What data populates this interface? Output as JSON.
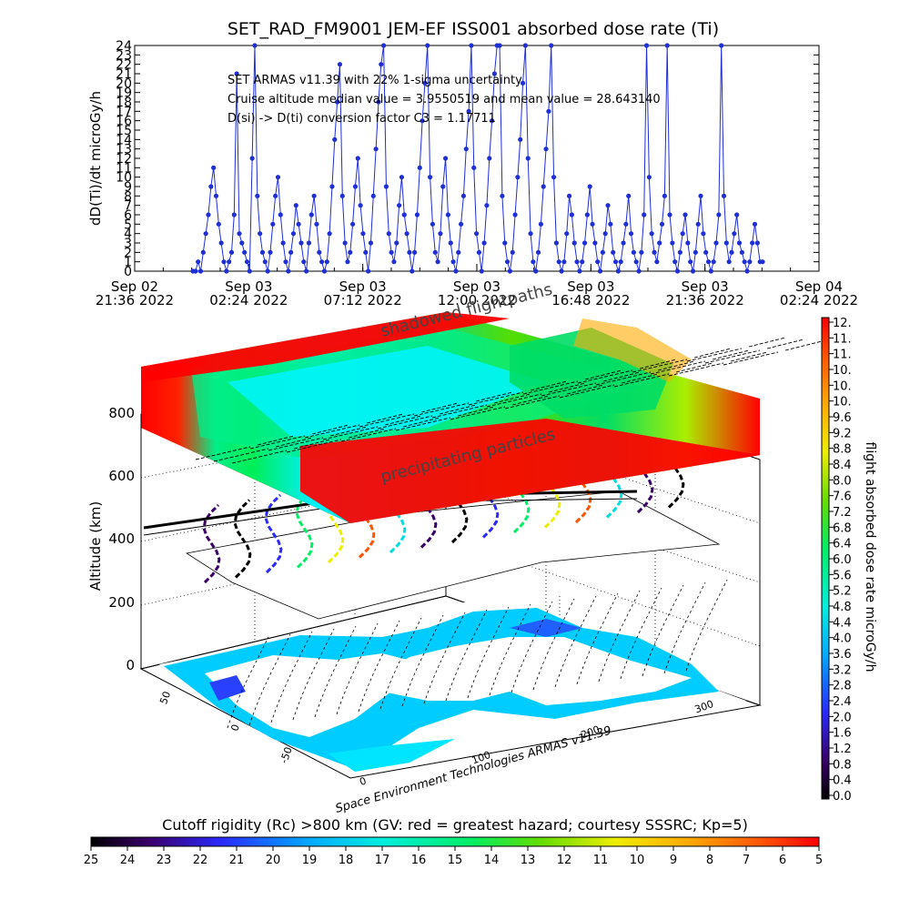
{
  "chart_data": [
    {
      "type": "line",
      "title": "SET_RAD_FM9001  JEM-EF ISS001 absorbed dose rate (Ti)",
      "ylabel": "dD(Ti)/dt microGy/h",
      "ylim": [
        0,
        24
      ],
      "y_ticks": [
        "0",
        "1",
        "2",
        "3",
        "4",
        "5",
        "6",
        "7",
        "8",
        "9",
        "10",
        "11",
        "12",
        "13",
        "14",
        "15",
        "16",
        "17",
        "18",
        "19",
        "20",
        "21",
        "22",
        "23",
        "24"
      ],
      "x_ticks": [
        {
          "line1": "Sep 02",
          "line2": "21:36 2022"
        },
        {
          "line1": "Sep 03",
          "line2": "02:24 2022"
        },
        {
          "line1": "Sep 03",
          "line2": "07:12 2022"
        },
        {
          "line1": "Sep 03",
          "line2": "12:00 2022"
        },
        {
          "line1": "Sep 03",
          "line2": "16:48 2022"
        },
        {
          "line1": "Sep 03",
          "line2": "21:36 2022"
        },
        {
          "line1": "Sep 04",
          "line2": "02:24 2022"
        }
      ],
      "annotations": [
        "SET ARMAS v11.39 with 22% 1-sigma uncertainty",
        "Cruise altitude median value = 3.9550519 and mean value = 28.643140",
        "D(si) -> D(ti) conversion factor C3 = 1.17711"
      ],
      "series": [
        {
          "color": "#1f2fd6",
          "values": [
            0,
            0,
            1,
            0,
            2,
            4,
            6,
            9,
            11,
            8,
            5,
            3,
            1,
            0,
            1,
            2,
            6,
            21,
            4,
            3,
            2,
            1,
            0,
            12,
            24,
            8,
            4,
            2,
            1,
            0,
            2,
            5,
            8,
            10,
            6,
            3,
            1,
            0,
            2,
            4,
            7,
            5,
            3,
            1,
            0,
            3,
            6,
            8,
            5,
            2,
            1,
            0,
            1,
            4,
            9,
            14,
            18,
            22,
            8,
            3,
            1,
            2,
            5,
            9,
            12,
            7,
            4,
            2,
            0,
            3,
            8,
            13,
            18,
            22,
            24,
            9,
            4,
            2,
            1,
            3,
            7,
            10,
            6,
            4,
            2,
            0,
            2,
            6,
            11,
            16,
            20,
            24,
            10,
            5,
            2,
            1,
            4,
            9,
            12,
            6,
            3,
            1,
            0,
            2,
            5,
            8,
            13,
            17,
            24,
            11,
            4,
            2,
            0,
            3,
            7,
            12,
            16,
            21,
            24,
            24,
            8,
            3,
            1,
            0,
            2,
            6,
            10,
            14,
            20,
            24,
            12,
            4,
            1,
            0,
            2,
            5,
            9,
            13,
            17,
            24,
            10,
            3,
            1,
            0,
            1,
            4,
            8,
            6,
            3,
            1,
            0,
            1,
            3,
            6,
            9,
            5,
            3,
            1,
            0,
            2,
            4,
            7,
            5,
            2,
            1,
            0,
            1,
            3,
            5,
            8,
            4,
            2,
            1,
            0,
            2,
            6,
            24,
            10,
            4,
            2,
            1,
            3,
            5,
            8,
            24,
            6,
            3,
            1,
            0,
            2,
            4,
            6,
            3,
            1,
            0,
            2,
            5,
            8,
            4,
            2,
            1,
            0,
            1,
            3,
            6,
            24,
            8,
            3,
            1,
            2,
            4,
            6,
            3,
            2,
            1,
            0,
            1,
            3,
            5,
            3,
            1,
            1
          ]
        }
      ]
    },
    {
      "type": "heatmap",
      "title": "",
      "zlabel": "Altitude (km)",
      "z_ticks": [
        "0",
        "200",
        "400",
        "600",
        "800"
      ],
      "lon_ticks": [
        "0",
        "100",
        "200",
        "300"
      ],
      "lat_ticks": [
        "50",
        "0",
        "-50"
      ],
      "overlay_labels": [
        "shadowed flightpaths",
        "precipitating particles"
      ],
      "credit": "Space Environment Technologies ARMAS v11.39"
    },
    {
      "type": "heatmap",
      "colorbar_label": "flight absorbed dose rate microGy/h",
      "colorbar_ticks": [
        "12.",
        "11.",
        "11.",
        "10.",
        "10.",
        "10.",
        "9.6",
        "9.2",
        "8.8",
        "8.4",
        "8.0",
        "7.6",
        "7.2",
        "6.8",
        "6.4",
        "6.0",
        "5.6",
        "5.2",
        "4.8",
        "4.4",
        "4.0",
        "3.6",
        "3.2",
        "2.8",
        "2.4",
        "2.0",
        "1.6",
        "1.2",
        "0.8",
        "0.4",
        "0.0"
      ]
    },
    {
      "type": "heatmap",
      "colorbar_label": "Cutoff rigidity (Rc) >800 km (GV: red = greatest hazard; courtesy SSSRC; Kp=5)",
      "colorbar_ticks": [
        "25",
        "24",
        "23",
        "22",
        "21",
        "20",
        "19",
        "18",
        "17",
        "16",
        "15",
        "14",
        "13",
        "12",
        "11",
        "10",
        "9",
        "8",
        "7",
        "6",
        "5"
      ]
    }
  ],
  "colors": {
    "series": "#1f2fd6",
    "hazard_high": "#ff0000",
    "hazard_mid": "#00ff66",
    "hazard_low": "#00ddff",
    "ocean": "#00ccff",
    "land": "#000000"
  }
}
